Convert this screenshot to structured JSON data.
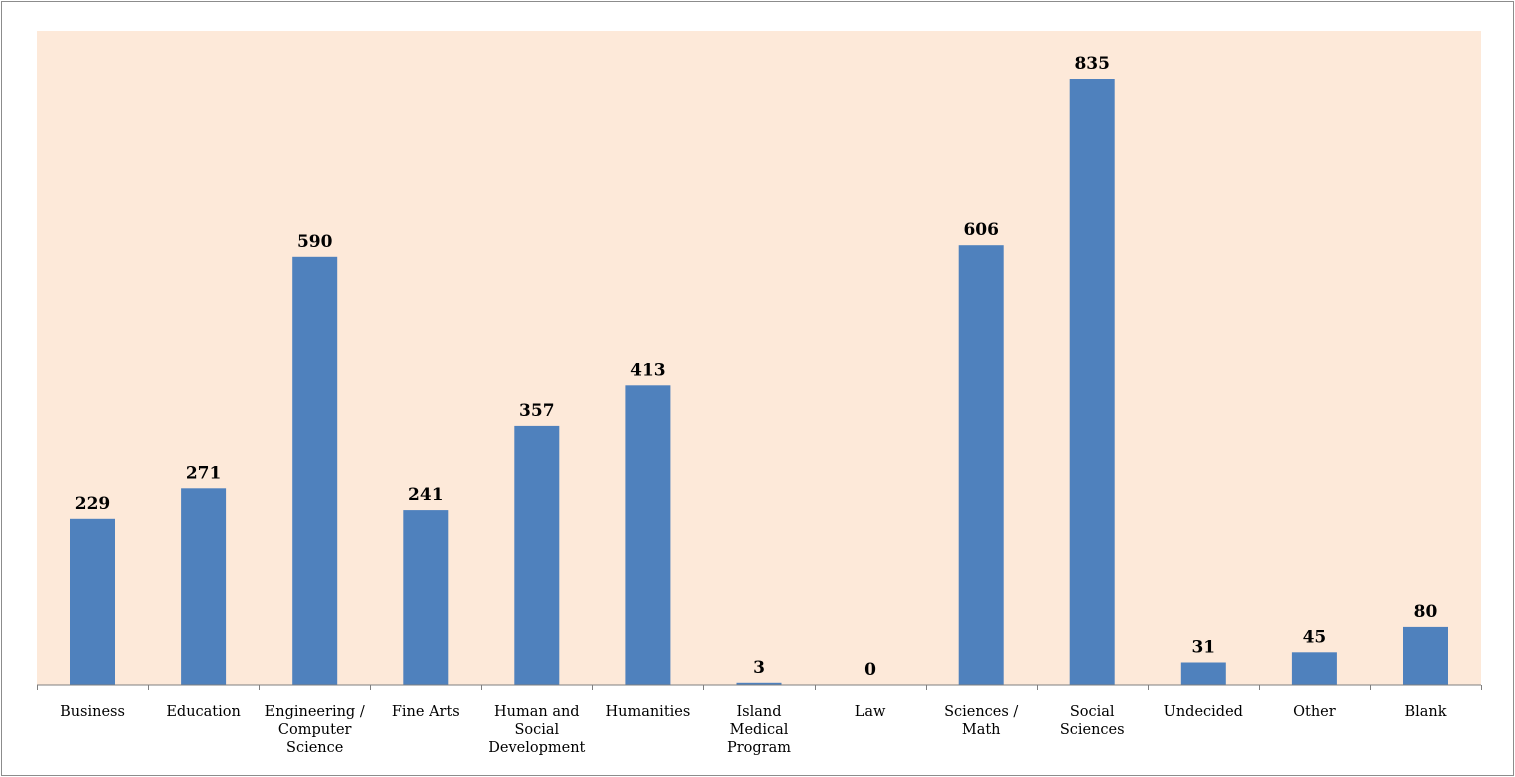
{
  "chart_data": {
    "type": "bar",
    "title": "",
    "xlabel": "",
    "ylabel": "",
    "ylim": [
      0,
      900
    ],
    "grid": false,
    "legend": "none",
    "colors": {
      "bar": "#4f81bd",
      "plot_background": "#fde9d9"
    },
    "categories": [
      [
        "Business"
      ],
      [
        "Education"
      ],
      [
        "Engineering /",
        "Computer",
        "Science"
      ],
      [
        "Fine Arts"
      ],
      [
        "Human and",
        "Social",
        "Development"
      ],
      [
        "Humanities"
      ],
      [
        "Island",
        "Medical",
        "Program"
      ],
      [
        "Law"
      ],
      [
        "Sciences /",
        "Math"
      ],
      [
        "Social",
        "Sciences"
      ],
      [
        "Undecided"
      ],
      [
        "Other"
      ],
      [
        "Blank"
      ]
    ],
    "values": [
      229,
      271,
      590,
      241,
      357,
      413,
      3,
      0,
      606,
      835,
      31,
      45,
      80
    ]
  }
}
